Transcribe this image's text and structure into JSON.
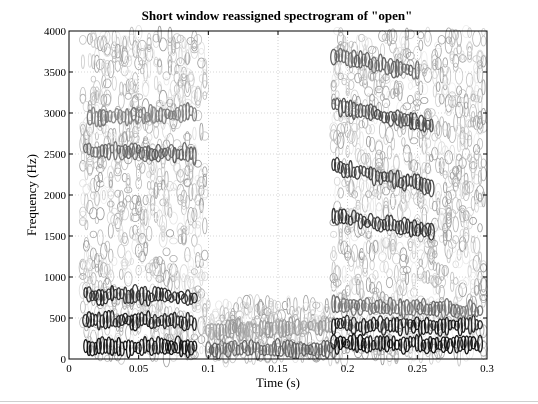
{
  "chart_data": {
    "type": "heatmap",
    "title": "Short window reassigned spectrogram of \"open\"",
    "xlabel": "Time (s)",
    "ylabel": "Frequency (Hz)",
    "xlim": [
      0,
      0.3
    ],
    "ylim": [
      0,
      4000
    ],
    "xticks": [
      0,
      0.05,
      0.1,
      0.15,
      0.2,
      0.25,
      0.3
    ],
    "xtick_labels": [
      "0",
      "0.05",
      "0.1",
      "0.15",
      "0.2",
      "0.25",
      "0.3"
    ],
    "yticks": [
      0,
      500,
      1000,
      1500,
      2000,
      2500,
      3000,
      3500,
      4000
    ],
    "ytick_labels": [
      "0",
      "500",
      "1000",
      "1500",
      "2000",
      "2500",
      "3000",
      "3500",
      "4000"
    ],
    "grid": true,
    "colormap": "grayscale (dark = high energy)",
    "segments": [
      {
        "t_start": 0.01,
        "t_end": 0.1,
        "f_low": 0,
        "f_high": 4000
      },
      {
        "t_start": 0.1,
        "t_end": 0.19,
        "f_low": 0,
        "f_high": 700
      },
      {
        "t_start": 0.19,
        "t_end": 0.3,
        "f_low": 0,
        "f_high": 4000
      }
    ],
    "formant_tracks": [
      {
        "t": [
          0.012,
          0.09
        ],
        "f": [
          150,
          150
        ],
        "strength": 0.95
      },
      {
        "t": [
          0.012,
          0.09
        ],
        "f": [
          480,
          450
        ],
        "strength": 0.9
      },
      {
        "t": [
          0.012,
          0.09
        ],
        "f": [
          780,
          760
        ],
        "strength": 0.85
      },
      {
        "t": [
          0.012,
          0.09
        ],
        "f": [
          2550,
          2500
        ],
        "strength": 0.6
      },
      {
        "t": [
          0.015,
          0.09
        ],
        "f": [
          2950,
          3000
        ],
        "strength": 0.5
      },
      {
        "t": [
          0.1,
          0.19
        ],
        "f": [
          120,
          120
        ],
        "strength": 0.6
      },
      {
        "t": [
          0.1,
          0.19
        ],
        "f": [
          350,
          400
        ],
        "strength": 0.35
      },
      {
        "t": [
          0.19,
          0.295
        ],
        "f": [
          180,
          180
        ],
        "strength": 0.95
      },
      {
        "t": [
          0.19,
          0.295
        ],
        "f": [
          420,
          400
        ],
        "strength": 0.9
      },
      {
        "t": [
          0.19,
          0.295
        ],
        "f": [
          650,
          600
        ],
        "strength": 0.55
      },
      {
        "t": [
          0.19,
          0.26
        ],
        "f": [
          1750,
          1550
        ],
        "strength": 0.8
      },
      {
        "t": [
          0.19,
          0.26
        ],
        "f": [
          2350,
          2100
        ],
        "strength": 0.75
      },
      {
        "t": [
          0.19,
          0.26
        ],
        "f": [
          3100,
          2850
        ],
        "strength": 0.7
      },
      {
        "t": [
          0.19,
          0.25
        ],
        "f": [
          3700,
          3500
        ],
        "strength": 0.6
      }
    ]
  }
}
